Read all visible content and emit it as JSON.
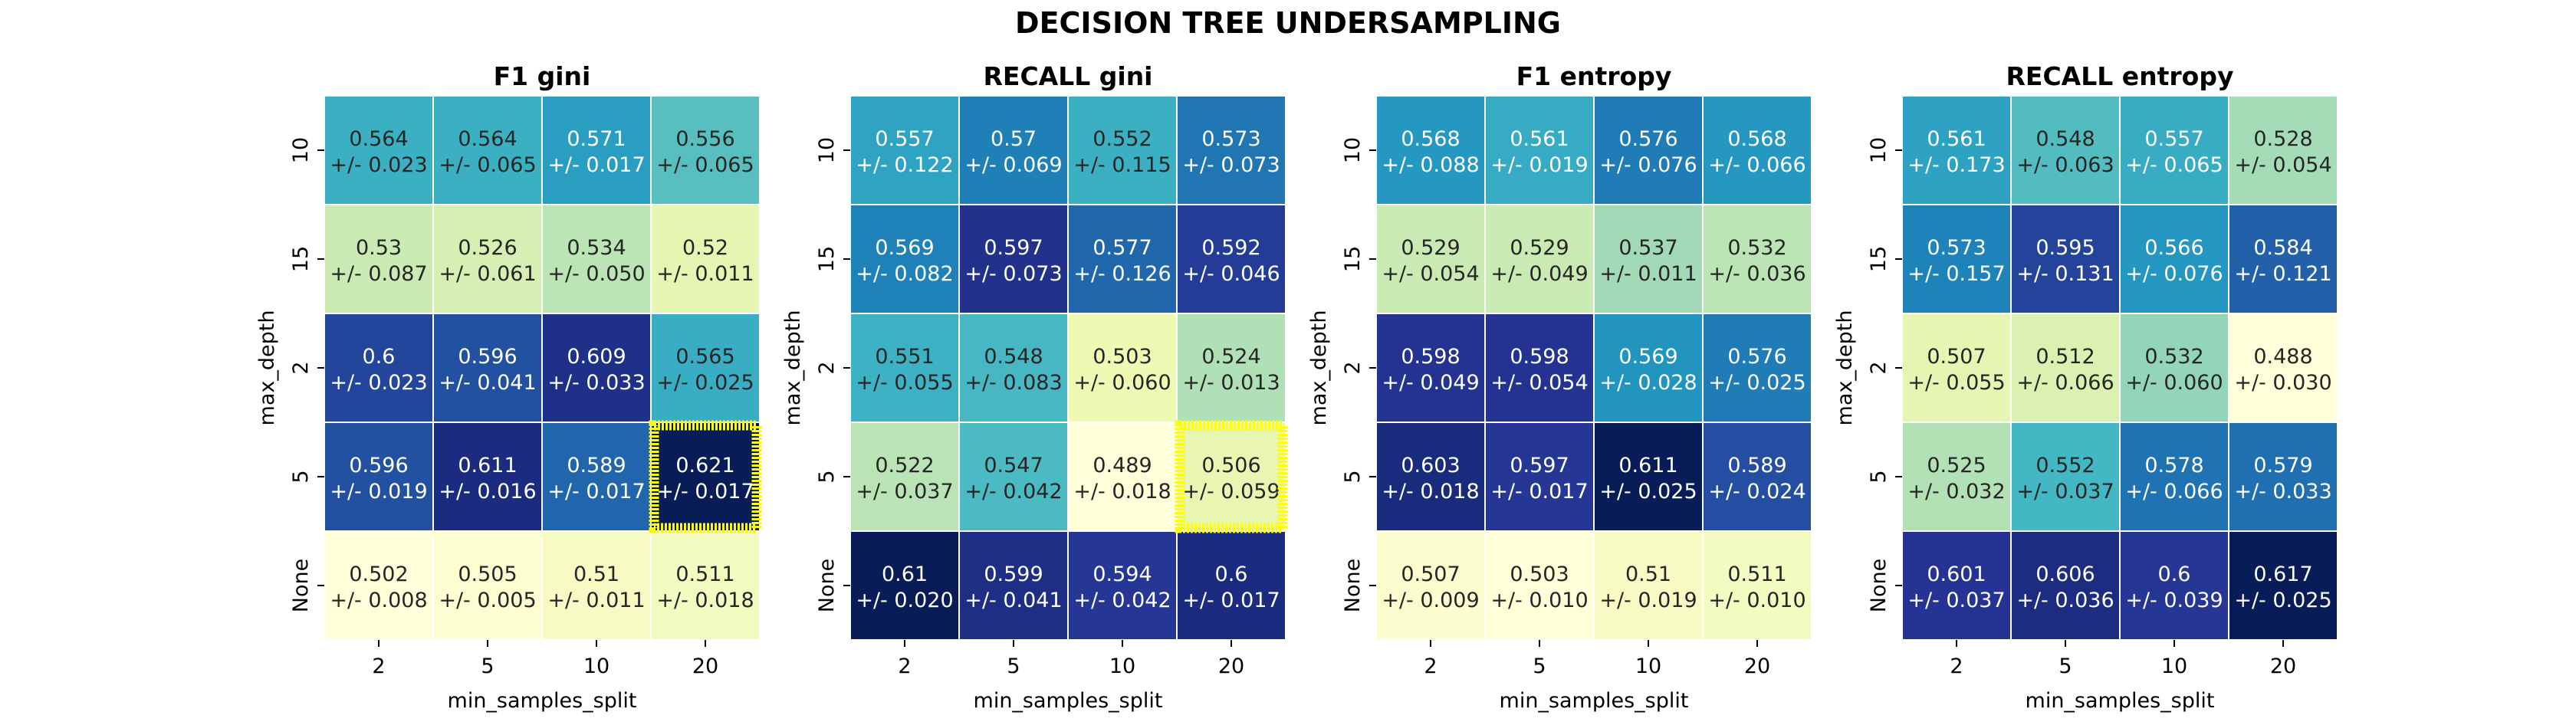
{
  "chart_data": {
    "suptitle": "DECISION TREE UNDERSAMPLING",
    "colormap": [
      "#ffffd9",
      "#edf8b1",
      "#c7e9b4",
      "#7fcdbb",
      "#41b6c4",
      "#1d91c0",
      "#225ea8",
      "#253494",
      "#081d58"
    ],
    "highlight_color": "#ffff00",
    "charts": [
      {
        "type": "heatmap",
        "title": "F1   gini",
        "xlabel": "min_samples_split",
        "ylabel": "max_depth",
        "x_ticks": [
          "2",
          "5",
          "10",
          "20"
        ],
        "y_ticks": [
          "10",
          "15",
          "2",
          "5",
          "None"
        ],
        "values": [
          [
            "0.564",
            "0.564",
            "0.571",
            "0.556"
          ],
          [
            "0.53",
            "0.526",
            "0.534",
            "0.52"
          ],
          [
            "0.6",
            "0.596",
            "0.609",
            "0.565"
          ],
          [
            "0.596",
            "0.611",
            "0.589",
            "0.621"
          ],
          [
            "0.502",
            "0.505",
            "0.51",
            "0.511"
          ]
        ],
        "errors": [
          [
            "+/- 0.023",
            "+/- 0.065",
            "+/- 0.017",
            "+/- 0.065"
          ],
          [
            "+/- 0.087",
            "+/- 0.061",
            "+/- 0.050",
            "+/- 0.011"
          ],
          [
            "+/- 0.023",
            "+/- 0.041",
            "+/- 0.033",
            "+/- 0.025"
          ],
          [
            "+/- 0.019",
            "+/- 0.016",
            "+/- 0.017",
            "+/- 0.017"
          ],
          [
            "+/- 0.008",
            "+/- 0.005",
            "+/- 0.011",
            "+/- 0.018"
          ]
        ],
        "highlight": {
          "row": 3,
          "col": 3
        }
      },
      {
        "type": "heatmap",
        "title": "RECALL   gini",
        "xlabel": "min_samples_split",
        "ylabel": "max_depth",
        "x_ticks": [
          "2",
          "5",
          "10",
          "20"
        ],
        "y_ticks": [
          "10",
          "15",
          "2",
          "5",
          "None"
        ],
        "values": [
          [
            "0.557",
            "0.57",
            "0.552",
            "0.573"
          ],
          [
            "0.569",
            "0.597",
            "0.577",
            "0.592"
          ],
          [
            "0.551",
            "0.548",
            "0.503",
            "0.524"
          ],
          [
            "0.522",
            "0.547",
            "0.489",
            "0.506"
          ],
          [
            "0.61",
            "0.599",
            "0.594",
            "0.6"
          ]
        ],
        "errors": [
          [
            "+/- 0.122",
            "+/- 0.069",
            "+/- 0.115",
            "+/- 0.073"
          ],
          [
            "+/- 0.082",
            "+/- 0.073",
            "+/- 0.126",
            "+/- 0.046"
          ],
          [
            "+/- 0.055",
            "+/- 0.083",
            "+/- 0.060",
            "+/- 0.013"
          ],
          [
            "+/- 0.037",
            "+/- 0.042",
            "+/- 0.018",
            "+/- 0.059"
          ],
          [
            "+/- 0.020",
            "+/- 0.041",
            "+/- 0.042",
            "+/- 0.017"
          ]
        ],
        "highlight": {
          "row": 3,
          "col": 3
        }
      },
      {
        "type": "heatmap",
        "title": "F1   entropy",
        "xlabel": "min_samples_split",
        "ylabel": "max_depth",
        "x_ticks": [
          "2",
          "5",
          "10",
          "20"
        ],
        "y_ticks": [
          "10",
          "15",
          "2",
          "5",
          "None"
        ],
        "values": [
          [
            "0.568",
            "0.561",
            "0.576",
            "0.568"
          ],
          [
            "0.529",
            "0.529",
            "0.537",
            "0.532"
          ],
          [
            "0.598",
            "0.598",
            "0.569",
            "0.576"
          ],
          [
            "0.603",
            "0.597",
            "0.611",
            "0.589"
          ],
          [
            "0.507",
            "0.503",
            "0.51",
            "0.511"
          ]
        ],
        "errors": [
          [
            "+/- 0.088",
            "+/- 0.019",
            "+/- 0.076",
            "+/- 0.066"
          ],
          [
            "+/- 0.054",
            "+/- 0.049",
            "+/- 0.011",
            "+/- 0.036"
          ],
          [
            "+/- 0.049",
            "+/- 0.054",
            "+/- 0.028",
            "+/- 0.025"
          ],
          [
            "+/- 0.018",
            "+/- 0.017",
            "+/- 0.025",
            "+/- 0.024"
          ],
          [
            "+/- 0.009",
            "+/- 0.010",
            "+/- 0.019",
            "+/- 0.010"
          ]
        ],
        "highlight": null
      },
      {
        "type": "heatmap",
        "title": "RECALL   entropy",
        "xlabel": "min_samples_split",
        "ylabel": "max_depth",
        "x_ticks": [
          "2",
          "5",
          "10",
          "20"
        ],
        "y_ticks": [
          "10",
          "15",
          "2",
          "5",
          "None"
        ],
        "values": [
          [
            "0.561",
            "0.548",
            "0.557",
            "0.528"
          ],
          [
            "0.573",
            "0.595",
            "0.566",
            "0.584"
          ],
          [
            "0.507",
            "0.512",
            "0.532",
            "0.488"
          ],
          [
            "0.525",
            "0.552",
            "0.578",
            "0.579"
          ],
          [
            "0.601",
            "0.606",
            "0.6",
            "0.617"
          ]
        ],
        "errors": [
          [
            "+/- 0.173",
            "+/- 0.063",
            "+/- 0.065",
            "+/- 0.054"
          ],
          [
            "+/- 0.157",
            "+/- 0.131",
            "+/- 0.076",
            "+/- 0.121"
          ],
          [
            "+/- 0.055",
            "+/- 0.066",
            "+/- 0.060",
            "+/- 0.030"
          ],
          [
            "+/- 0.032",
            "+/- 0.037",
            "+/- 0.066",
            "+/- 0.033"
          ],
          [
            "+/- 0.037",
            "+/- 0.036",
            "+/- 0.039",
            "+/- 0.025"
          ]
        ],
        "highlight": null
      }
    ]
  }
}
